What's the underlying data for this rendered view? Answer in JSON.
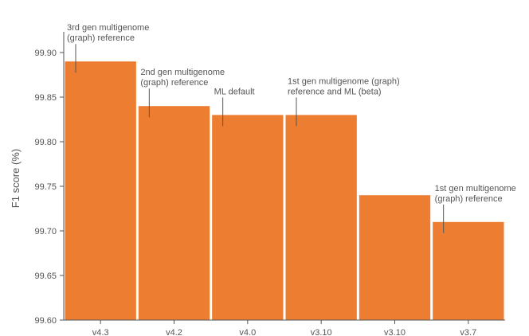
{
  "chart_data": {
    "type": "bar",
    "title": "",
    "xlabel": "",
    "ylabel": "F1 score (%)",
    "ylim": [
      99.6,
      99.92
    ],
    "grid": false,
    "yticks": [
      "99.60",
      "99.65",
      "99.70",
      "99.75",
      "99.80",
      "99.85",
      "99.90"
    ],
    "categories": [
      "v4.3",
      "v4.2",
      "v4.0",
      "v3.10",
      "v3.10",
      "v3.7"
    ],
    "values": [
      99.89,
      99.84,
      99.83,
      99.83,
      99.74,
      99.71
    ],
    "bar_color": "#ed7d31",
    "annotations": [
      {
        "bar": 0,
        "lines": [
          "3rd gen multigenome",
          "(graph) reference"
        ]
      },
      {
        "bar": 1,
        "lines": [
          "2nd gen multigenome",
          "(graph) reference"
        ]
      },
      {
        "bar": 2,
        "lines": [
          "ML default"
        ]
      },
      {
        "bar": 3,
        "lines": [
          "1st gen multigenome (graph)",
          "reference and ML (beta)"
        ]
      },
      {
        "bar": 5,
        "lines": [
          "1st gen multigenome",
          "(graph) reference"
        ]
      }
    ]
  }
}
